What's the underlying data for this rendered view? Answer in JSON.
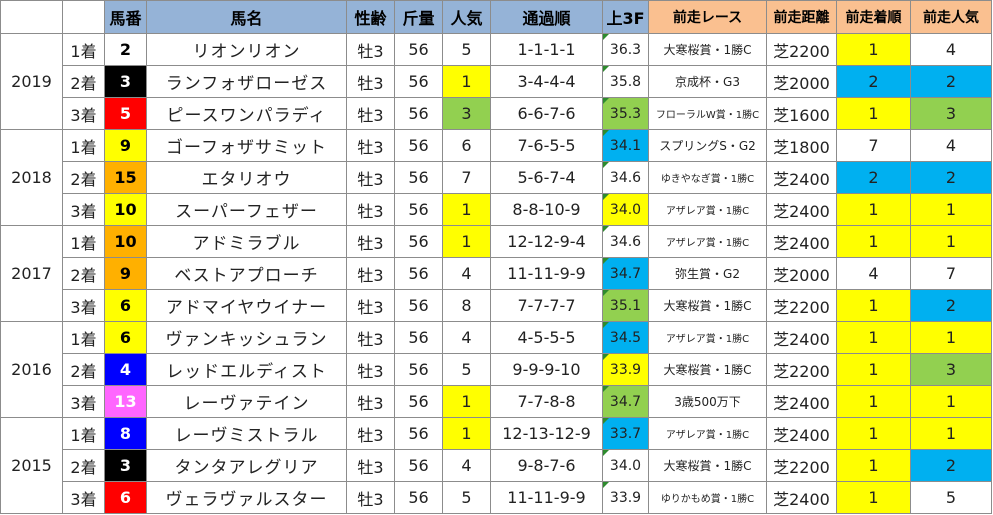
{
  "headers": [
    "",
    "",
    "馬番",
    "馬名",
    "性齢",
    "斤量",
    "人気",
    "通過順",
    "上3F",
    "前走レース",
    "前走距離",
    "前走着順",
    "前走人気"
  ],
  "colors": {
    "header_blue": "#95b3d7",
    "header_orange": "#fac090",
    "highlight_yellow": "#ffff00",
    "highlight_green": "#92d050",
    "highlight_blue": "#00b0f0"
  },
  "years": [
    {
      "year": "2019",
      "rows": [
        {
          "place": "1着",
          "num": "2",
          "num_color": "wh",
          "name": "リオンリオン",
          "sex": "牡3",
          "weight": "56",
          "pop": "5",
          "pop_hl": "hn",
          "pass": "1-1-1-1",
          "f3": "36.3",
          "f3_hl": "hn",
          "race": "大寒桜賞・1勝C",
          "race_small": false,
          "dist": "芝2200",
          "prev_place": "1",
          "pp_hl": "hy",
          "prev_pop": "4",
          "ppop_hl": "hn"
        },
        {
          "place": "2着",
          "num": "3",
          "num_color": "bk",
          "name": "ランフォザローゼス",
          "sex": "牡3",
          "weight": "56",
          "pop": "1",
          "pop_hl": "hy",
          "pass": "3-4-4-4",
          "f3": "35.8",
          "f3_hl": "hn",
          "race": "京成杯・G3",
          "race_small": false,
          "dist": "芝2000",
          "prev_place": "2",
          "pp_hl": "hb",
          "prev_pop": "2",
          "ppop_hl": "hb"
        },
        {
          "place": "3着",
          "num": "5",
          "num_color": "rd",
          "name": "ピースワンパラディ",
          "sex": "牡3",
          "weight": "56",
          "pop": "3",
          "pop_hl": "hg",
          "pass": "6-6-7-6",
          "f3": "35.3",
          "f3_hl": "hg",
          "race": "フローラルW賞・1勝C",
          "race_small": true,
          "dist": "芝1600",
          "prev_place": "1",
          "pp_hl": "hy",
          "prev_pop": "3",
          "ppop_hl": "hg"
        }
      ]
    },
    {
      "year": "2018",
      "rows": [
        {
          "place": "1着",
          "num": "9",
          "num_color": "yl",
          "name": "ゴーフォザサミット",
          "sex": "牡3",
          "weight": "56",
          "pop": "6",
          "pop_hl": "hn",
          "pass": "7-6-5-5",
          "f3": "34.1",
          "f3_hl": "hb",
          "race": "スプリングS・G2",
          "race_small": false,
          "dist": "芝1800",
          "prev_place": "7",
          "pp_hl": "hn",
          "prev_pop": "4",
          "ppop_hl": "hn"
        },
        {
          "place": "2着",
          "num": "15",
          "num_color": "or",
          "name": "エタリオウ",
          "sex": "牡3",
          "weight": "56",
          "pop": "7",
          "pop_hl": "hn",
          "pass": "5-6-7-4",
          "f3": "34.6",
          "f3_hl": "hn",
          "race": "ゆきやなぎ賞・1勝C",
          "race_small": true,
          "dist": "芝2400",
          "prev_place": "2",
          "pp_hl": "hb",
          "prev_pop": "2",
          "ppop_hl": "hb"
        },
        {
          "place": "3着",
          "num": "10",
          "num_color": "yl",
          "name": "スーパーフェザー",
          "sex": "牡3",
          "weight": "56",
          "pop": "1",
          "pop_hl": "hy",
          "pass": "8-8-10-9",
          "f3": "34.0",
          "f3_hl": "hy",
          "race": "アザレア賞・1勝C",
          "race_small": true,
          "dist": "芝2400",
          "prev_place": "1",
          "pp_hl": "hy",
          "prev_pop": "1",
          "ppop_hl": "hy"
        }
      ]
    },
    {
      "year": "2017",
      "rows": [
        {
          "place": "1着",
          "num": "10",
          "num_color": "or",
          "name": "アドミラブル",
          "sex": "牡3",
          "weight": "56",
          "pop": "1",
          "pop_hl": "hy",
          "pass": "12-12-9-4",
          "f3": "34.6",
          "f3_hl": "hn",
          "race": "アザレア賞・1勝C",
          "race_small": true,
          "dist": "芝2400",
          "prev_place": "1",
          "pp_hl": "hy",
          "prev_pop": "1",
          "ppop_hl": "hy"
        },
        {
          "place": "2着",
          "num": "9",
          "num_color": "or",
          "name": "ベストアプローチ",
          "sex": "牡3",
          "weight": "56",
          "pop": "4",
          "pop_hl": "hn",
          "pass": "11-11-9-9",
          "f3": "34.7",
          "f3_hl": "hb",
          "race": "弥生賞・G2",
          "race_small": false,
          "dist": "芝2000",
          "prev_place": "4",
          "pp_hl": "hn",
          "prev_pop": "7",
          "ppop_hl": "hn"
        },
        {
          "place": "3着",
          "num": "6",
          "num_color": "yl",
          "name": "アドマイヤウイナー",
          "sex": "牡3",
          "weight": "56",
          "pop": "8",
          "pop_hl": "hn",
          "pass": "7-7-7-7",
          "f3": "35.1",
          "f3_hl": "hg",
          "race": "大寒桜賞・1勝C",
          "race_small": false,
          "dist": "芝2200",
          "prev_place": "1",
          "pp_hl": "hy",
          "prev_pop": "2",
          "ppop_hl": "hb"
        }
      ]
    },
    {
      "year": "2016",
      "rows": [
        {
          "place": "1着",
          "num": "6",
          "num_color": "yl",
          "name": "ヴァンキッシュラン",
          "sex": "牡3",
          "weight": "56",
          "pop": "4",
          "pop_hl": "hn",
          "pass": "4-5-5-5",
          "f3": "34.5",
          "f3_hl": "hb",
          "race": "アザレア賞・1勝C",
          "race_small": true,
          "dist": "芝2400",
          "prev_place": "1",
          "pp_hl": "hy",
          "prev_pop": "1",
          "ppop_hl": "hy"
        },
        {
          "place": "2着",
          "num": "4",
          "num_color": "bl",
          "name": "レッドエルディスト",
          "sex": "牡3",
          "weight": "56",
          "pop": "5",
          "pop_hl": "hn",
          "pass": "9-9-9-10",
          "f3": "33.9",
          "f3_hl": "hy",
          "race": "大寒桜賞・1勝C",
          "race_small": false,
          "dist": "芝2200",
          "prev_place": "1",
          "pp_hl": "hy",
          "prev_pop": "3",
          "ppop_hl": "hg"
        },
        {
          "place": "3着",
          "num": "13",
          "num_color": "pk",
          "name": "レーヴァテイン",
          "sex": "牡3",
          "weight": "56",
          "pop": "1",
          "pop_hl": "hy",
          "pass": "7-7-8-8",
          "f3": "34.7",
          "f3_hl": "hg",
          "race": "3歳500万下",
          "race_small": false,
          "dist": "芝2400",
          "prev_place": "1",
          "pp_hl": "hy",
          "prev_pop": "1",
          "ppop_hl": "hy"
        }
      ]
    },
    {
      "year": "2015",
      "rows": [
        {
          "place": "1着",
          "num": "8",
          "num_color": "bl",
          "name": "レーヴミストラル",
          "sex": "牡3",
          "weight": "56",
          "pop": "1",
          "pop_hl": "hy",
          "pass": "12-13-12-9",
          "f3": "33.7",
          "f3_hl": "hb",
          "race": "アザレア賞・1勝C",
          "race_small": true,
          "dist": "芝2400",
          "prev_place": "1",
          "pp_hl": "hy",
          "prev_pop": "1",
          "ppop_hl": "hy"
        },
        {
          "place": "2着",
          "num": "3",
          "num_color": "bk",
          "name": "タンタアレグリア",
          "sex": "牡3",
          "weight": "56",
          "pop": "4",
          "pop_hl": "hn",
          "pass": "9-8-7-6",
          "f3": "34.0",
          "f3_hl": "hn",
          "race": "大寒桜賞・1勝C",
          "race_small": false,
          "dist": "芝2200",
          "prev_place": "1",
          "pp_hl": "hy",
          "prev_pop": "2",
          "ppop_hl": "hb"
        },
        {
          "place": "3着",
          "num": "6",
          "num_color": "rd",
          "name": "ヴェラヴァルスター",
          "sex": "牡3",
          "weight": "56",
          "pop": "5",
          "pop_hl": "hn",
          "pass": "11-11-9-9",
          "f3": "33.9",
          "f3_hl": "hn",
          "race": "ゆりかもめ賞・1勝C",
          "race_small": true,
          "dist": "芝2400",
          "prev_place": "1",
          "pp_hl": "hy",
          "prev_pop": "5",
          "ppop_hl": "hn"
        }
      ]
    }
  ]
}
